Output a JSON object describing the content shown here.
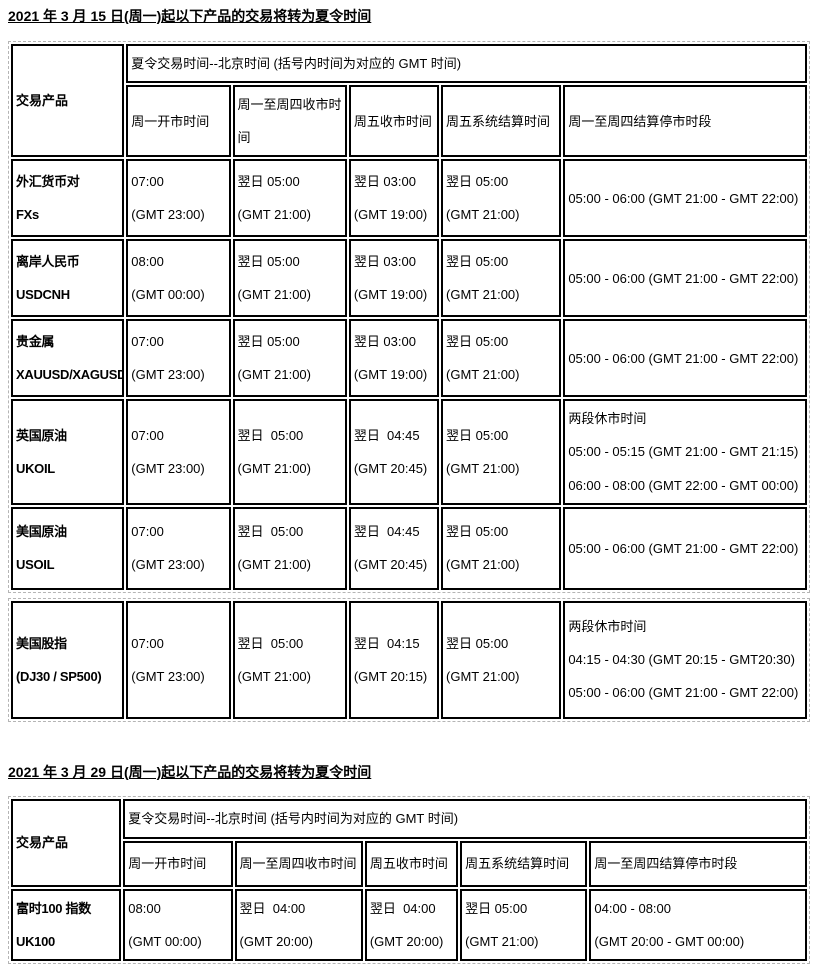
{
  "colors": {
    "text": "#000000",
    "cell_border": "#000000",
    "table_gridline": "#b5b5b5",
    "background": "#ffffff"
  },
  "section1": {
    "title": "2021 年 3 月 15 日(周一)起以下产品的交易将转为夏令时间",
    "table": {
      "product_header": "交易产品",
      "merged_header": "夏令交易时间--北京时间 (括号内时间为对应的 GMT 时间)",
      "columns": {
        "open": "周一开市时间",
        "close_mon_thu": "周一至周四收市时间",
        "close_fri": "周五收市时间",
        "settle_fri": "周五系统结算时间",
        "halt": "周一至周四结算停市时段"
      },
      "rows": [
        {
          "product": "外汇货币对\nFXs",
          "open": "07:00\n(GMT 23:00)",
          "close_mon_thu": "翌日 05:00\n(GMT 21:00)",
          "close_fri": "翌日 03:00\n(GMT 19:00)",
          "settle_fri": "翌日 05:00\n(GMT 21:00)",
          "halt": "05:00 - 06:00 (GMT 21:00 - GMT 22:00)"
        },
        {
          "product": "离岸人民币\nUSDCNH",
          "open": "08:00\n(GMT 00:00)",
          "close_mon_thu": "翌日 05:00\n(GMT 21:00)",
          "close_fri": "翌日 03:00\n(GMT 19:00)",
          "settle_fri": "翌日 05:00\n(GMT 21:00)",
          "halt": "05:00 - 06:00 (GMT 21:00 - GMT 22:00)"
        },
        {
          "product": "贵金属\nXAUUSD/XAGUSD",
          "open": "07:00\n(GMT 23:00)",
          "close_mon_thu": "翌日 05:00\n(GMT 21:00)",
          "close_fri": "翌日 03:00\n(GMT 19:00)",
          "settle_fri": "翌日 05:00\n(GMT 21:00)",
          "halt": "05:00 - 06:00 (GMT 21:00 - GMT 22:00)"
        },
        {
          "product": "英国原油\nUKOIL",
          "open": "07:00\n(GMT 23:00)",
          "close_mon_thu": "翌日  05:00\n(GMT 21:00)",
          "close_fri": "翌日  04:45\n(GMT 20:45)",
          "settle_fri": "翌日 05:00\n(GMT 21:00)",
          "halt": "两段休市时间\n05:00 - 05:15 (GMT 21:00 - GMT 21:15)\n06:00 - 08:00 (GMT 22:00 - GMT 00:00)"
        },
        {
          "product": "美国原油\nUSOIL",
          "open": "07:00\n(GMT 23:00)",
          "close_mon_thu": "翌日  05:00\n(GMT 21:00)",
          "close_fri": "翌日  04:45\n(GMT 20:45)",
          "settle_fri": "翌日 05:00\n(GMT 21:00)",
          "halt": "05:00 - 06:00 (GMT 21:00 - GMT 22:00)"
        },
        {
          "product": "美国股指\n(DJ30 / SP500)",
          "open": "07:00\n(GMT 23:00)",
          "close_mon_thu": "翌日  05:00\n(GMT 21:00)",
          "close_fri": "翌日  04:15\n(GMT 20:15)",
          "settle_fri": "翌日 05:00\n(GMT 21:00)",
          "halt": "两段休市时间\n04:15 - 04:30 (GMT 20:15 - GMT20:30)\n05:00 - 06:00 (GMT 21:00 - GMT 22:00)"
        }
      ]
    }
  },
  "section2": {
    "title": "2021 年 3 月 29 日(周一)起以下产品的交易将转为夏令时间",
    "table": {
      "product_header": "交易产品",
      "merged_header": "夏令交易时间--北京时间 (括号内时间为对应的 GMT 时间)",
      "columns": {
        "open": "周一开市时间",
        "close_mon_thu": "周一至周四收市时间",
        "close_fri": "周五收市时间",
        "settle_fri": "周五系统结算时间",
        "halt": "周一至周四结算停市时段"
      },
      "rows": [
        {
          "product": "富时100 指数\nUK100",
          "open": "08:00\n(GMT 00:00)",
          "close_mon_thu": "翌日  04:00\n(GMT 20:00)",
          "close_fri": "翌日  04:00\n(GMT 20:00)",
          "settle_fri": "翌日 05:00\n(GMT 21:00)",
          "halt": "04:00 - 08:00\n(GMT 20:00 - GMT 00:00)"
        }
      ]
    }
  }
}
